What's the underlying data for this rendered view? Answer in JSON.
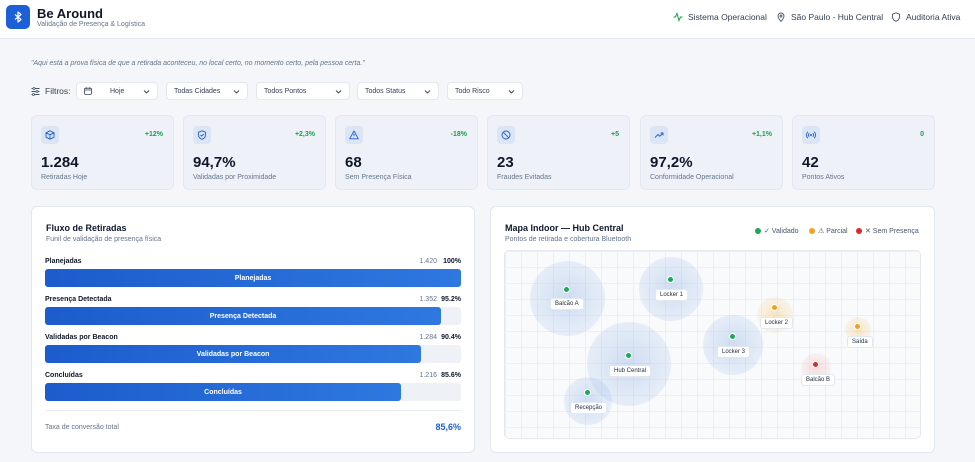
{
  "header": {
    "title": "Be Around",
    "subtitle": "Validação de Presença & Logística",
    "status": "Sistema Operacional",
    "location": "São Paulo - Hub Central",
    "audit": "Auditoria Ativa"
  },
  "quote": "\"Aqui está a prova física de que a retirada aconteceu, no local certo, no momento certo, pela pessoa certa.\"",
  "filters": {
    "label": "Filtros:",
    "date": "Hoje",
    "city": "Todas Cidades",
    "point": "Todos Pontos",
    "status": "Todos Status",
    "risk": "Todo Risco"
  },
  "kpis": [
    {
      "icon": "box-icon",
      "delta": "+12%",
      "value": "1.284",
      "label": "Retiradas Hoje"
    },
    {
      "icon": "shield-check-icon",
      "delta": "+2,3%",
      "value": "94,7%",
      "label": "Validadas por Proximidade"
    },
    {
      "icon": "alert-triangle-icon",
      "delta": "-18%",
      "value": "68",
      "label": "Sem Presença Física"
    },
    {
      "icon": "ban-icon",
      "delta": "+5",
      "value": "23",
      "label": "Fraudes Evitadas"
    },
    {
      "icon": "trending-up-icon",
      "delta": "+1,1%",
      "value": "97,2%",
      "label": "Conformidade Operacional"
    },
    {
      "icon": "broadcast-icon",
      "delta": "0",
      "value": "42",
      "label": "Pontos Ativos"
    }
  ],
  "funnel": {
    "title": "Fluxo de Retiradas",
    "subtitle": "Funil de validação de presença física",
    "steps": [
      {
        "name": "Planejadas",
        "count": "1.420",
        "pct": "100%",
        "fraction": 1.0
      },
      {
        "name": "Presença Detectada",
        "count": "1.352",
        "pct": "95.2%",
        "fraction": 0.952
      },
      {
        "name": "Validadas por Beacon",
        "count": "1.284",
        "pct": "90.4%",
        "fraction": 0.904
      },
      {
        "name": "Concluídas",
        "count": "1.216",
        "pct": "85.6%",
        "fraction": 0.856
      }
    ],
    "conversion_label": "Taxa de conversão total",
    "conversion_value": "85,6%"
  },
  "map": {
    "title": "Mapa Indoor — Hub Central",
    "subtitle": "Pontos de retirada e cobertura Bluetooth",
    "legend": [
      {
        "label": "✓ Validado",
        "color": "#22a559"
      },
      {
        "label": "⚠ Parcial",
        "color": "#f2a21a"
      },
      {
        "label": "✕ Sem Presença",
        "color": "#dc2a2a"
      }
    ],
    "points": [
      {
        "label": "Balcão A",
        "status": "ok"
      },
      {
        "label": "Locker 1",
        "status": "ok"
      },
      {
        "label": "Locker 2",
        "status": "warn"
      },
      {
        "label": "Saída",
        "status": "warn"
      },
      {
        "label": "Locker 3",
        "status": "ok"
      },
      {
        "label": "Hub Central",
        "status": "ok"
      },
      {
        "label": "Balcão B",
        "status": "bad"
      },
      {
        "label": "Recepção",
        "status": "ok"
      }
    ]
  },
  "colors": {
    "brand": "#1d5fd6",
    "up": "#16a34a",
    "down": "#16a34a",
    "neutral": "#16a34a"
  }
}
